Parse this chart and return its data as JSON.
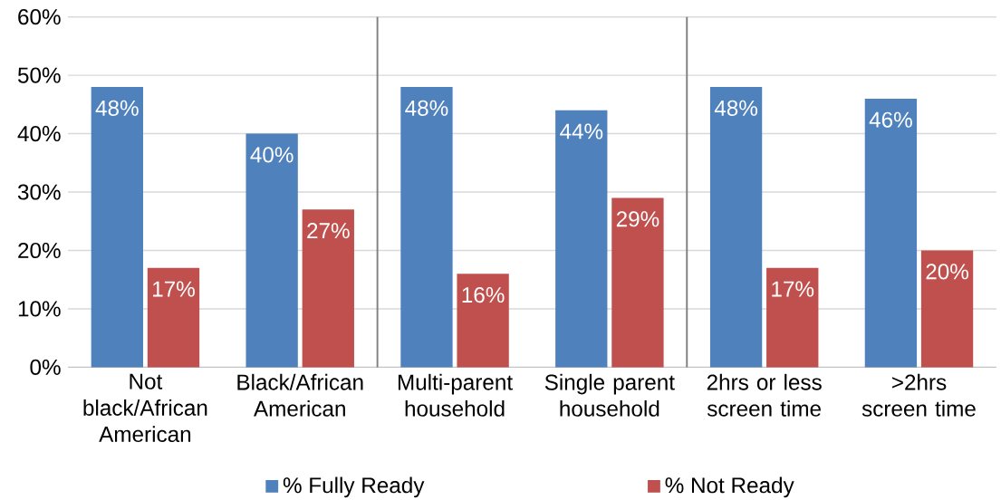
{
  "chart_data": {
    "type": "bar",
    "categories": [
      "Not black/African American",
      "Black/African American",
      "Multi-parent household",
      "Single parent household",
      "2hrs or less screen time",
      ">2hrs screen time"
    ],
    "series": [
      {
        "name": "% Fully Ready",
        "color": "#4f81bd",
        "values": [
          48,
          40,
          48,
          44,
          48,
          46
        ],
        "value_labels": [
          "48%",
          "40%",
          "48%",
          "44%",
          "48%",
          "46%"
        ]
      },
      {
        "name": "% Not Ready",
        "color": "#c0504d",
        "values": [
          17,
          27,
          16,
          29,
          17,
          20
        ],
        "value_labels": [
          "17%",
          "27%",
          "16%",
          "29%",
          "17%",
          "20%"
        ]
      }
    ],
    "ylim": [
      0,
      60
    ],
    "yticks": [
      {
        "value": 0,
        "label": "0%"
      },
      {
        "value": 10,
        "label": "10%"
      },
      {
        "value": 20,
        "label": "20%"
      },
      {
        "value": 30,
        "label": "30%"
      },
      {
        "value": 40,
        "label": "40%"
      },
      {
        "value": 50,
        "label": "50%"
      },
      {
        "value": 60,
        "label": "60%"
      }
    ],
    "grid": "y",
    "legend": "bottom"
  }
}
